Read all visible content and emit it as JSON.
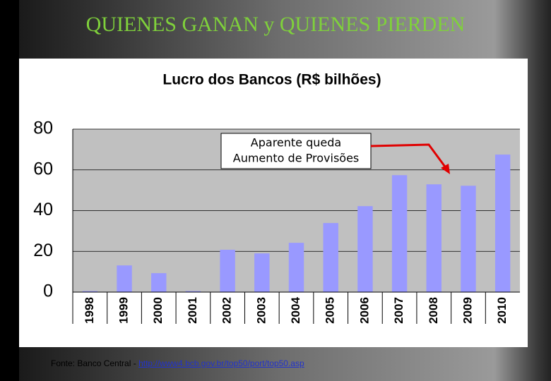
{
  "header": {
    "title": "QUIENES GANAN y QUIENES PIERDEN"
  },
  "chart_data": {
    "type": "bar",
    "title": "Lucro dos Bancos (R$ bilhões)",
    "categories": [
      "1998",
      "1999",
      "2000",
      "2001",
      "2002",
      "2003",
      "2004",
      "2005",
      "2006",
      "2007",
      "2008",
      "2009",
      "2010"
    ],
    "values": [
      0.5,
      13.1,
      9.3,
      0.5,
      20.8,
      19,
      24.2,
      33.9,
      42.2,
      57.4,
      52.9,
      52.2,
      67.5
    ],
    "color": "#9999ff",
    "ylim": [
      0,
      80
    ],
    "yticks": [
      0,
      20,
      40,
      60,
      80
    ],
    "grid": true,
    "annotation": [
      "Aparente queda",
      "Aumento de Provisões"
    ]
  },
  "footer": {
    "source": "Fonte: Banco Central - ",
    "url": "http://www4.bcb.gov.br/top50/port/top50.asp"
  }
}
